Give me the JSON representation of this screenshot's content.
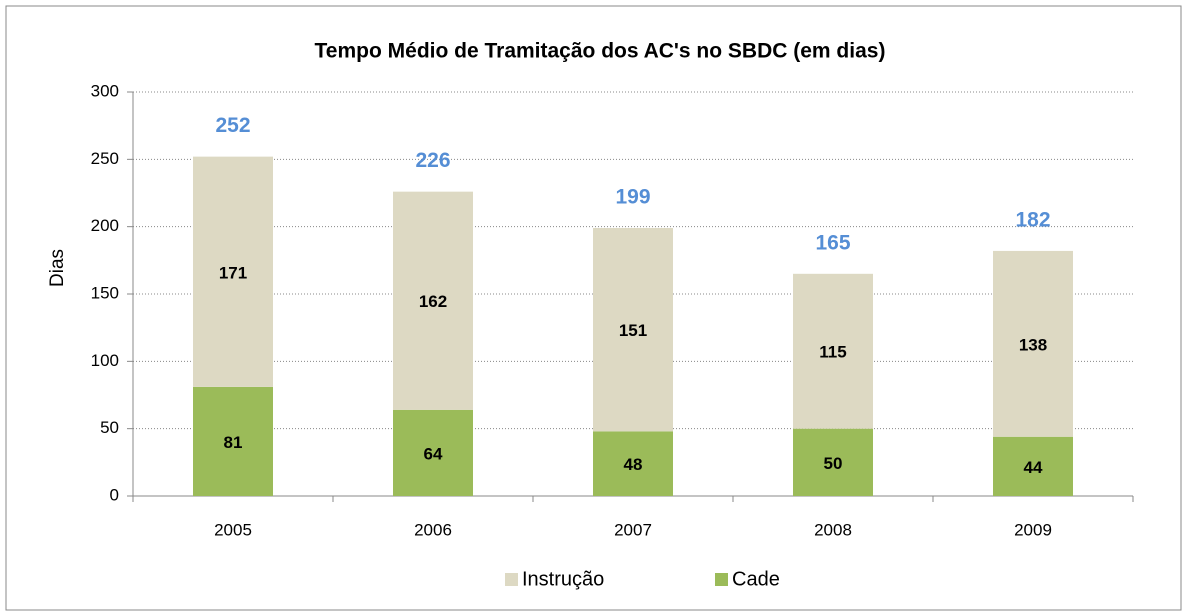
{
  "chart_data": {
    "type": "stacked_bar",
    "title": "Tempo Médio de Tramitação dos AC's no SBDC (em dias)",
    "y_label": "Dias",
    "categories": [
      "2005",
      "2006",
      "2007",
      "2008",
      "2009"
    ],
    "series": [
      {
        "name": "Instrução",
        "color": "#ddd9c3",
        "values": [
          171,
          162,
          151,
          115,
          138
        ]
      },
      {
        "name": "Cade",
        "color": "#9bbb59",
        "values": [
          81,
          64,
          48,
          50,
          44
        ]
      }
    ],
    "totals": [
      252,
      226,
      199,
      165,
      182
    ],
    "totals_color": "#558ed5",
    "ylim": [
      0,
      300
    ],
    "yticks": [
      0,
      50,
      100,
      150,
      200,
      250,
      300
    ],
    "grid": true,
    "legend": "bottom"
  }
}
